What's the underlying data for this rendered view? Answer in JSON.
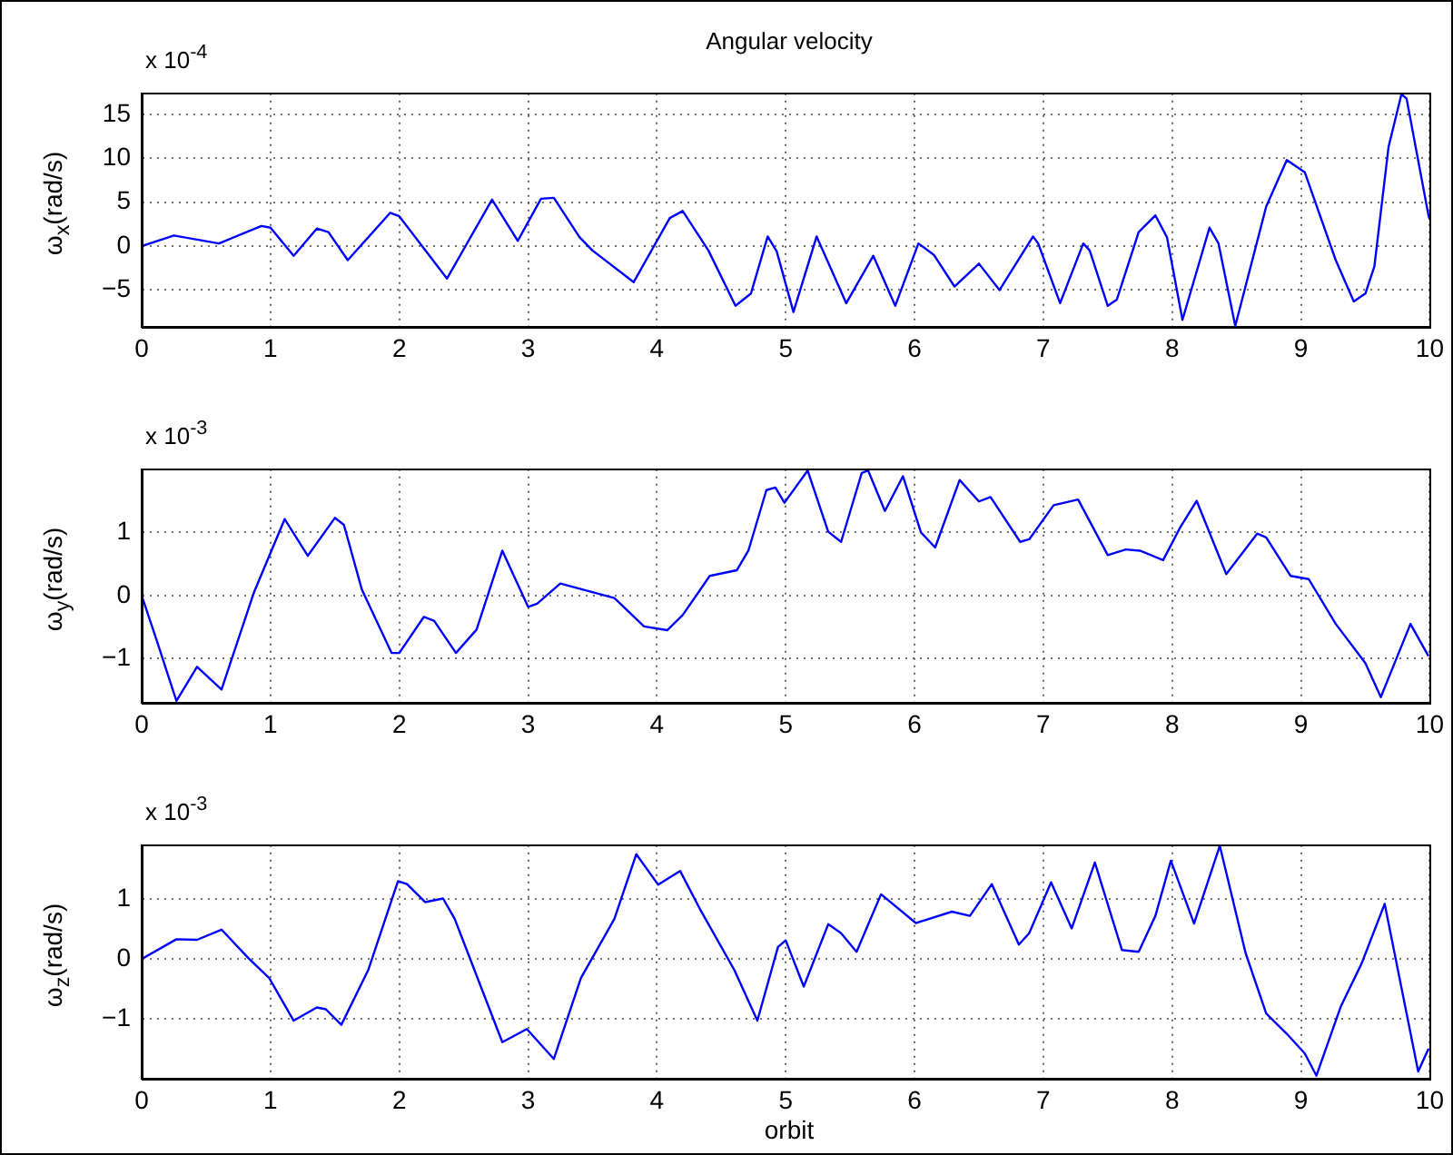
{
  "chart_data": [
    {
      "type": "line",
      "title": "Angular velocity",
      "ylabel": "ω$_{x}$(rad/s)",
      "annotations": [
        "x 10$^{-4}$"
      ],
      "xlim": [
        0,
        10
      ],
      "xticks": [
        0,
        1,
        2,
        3,
        4,
        5,
        6,
        7,
        8,
        9,
        10
      ],
      "ylim": [
        -9.2,
        17.4
      ],
      "yticks": [
        -5,
        0,
        5,
        10,
        15
      ],
      "grid": true,
      "marker": "none",
      "line_style": "solid",
      "x": [
        0,
        0.25,
        0.6,
        0.93,
        1.0,
        1.18,
        1.36,
        1.45,
        1.6,
        1.93,
        2.0,
        2.37,
        2.72,
        2.92,
        3.1,
        3.2,
        3.4,
        3.5,
        3.82,
        4.1,
        4.2,
        4.4,
        4.61,
        4.73,
        4.86,
        4.93,
        5.06,
        5.24,
        5.47,
        5.68,
        5.85,
        6.03,
        6.15,
        6.31,
        6.5,
        6.66,
        6.92,
        6.96,
        7.13,
        7.31,
        7.36,
        7.5,
        7.57,
        7.74,
        7.87,
        7.96,
        8.08,
        8.29,
        8.36,
        8.49,
        8.73,
        8.89,
        9.03,
        9.27,
        9.41,
        9.5,
        9.57,
        9.68,
        9.78,
        9.82,
        9.99,
        10
      ],
      "series": [
        {
          "color": "#0000ff",
          "values": [
            0,
            1.2,
            0.3,
            2.3,
            2.1,
            -1.1,
            2.0,
            1.6,
            -1.6,
            3.8,
            3.4,
            -3.7,
            5.3,
            0.6,
            5.4,
            5.5,
            1.0,
            -0.5,
            -4.1,
            3.2,
            4.0,
            -0.5,
            -6.8,
            -5.4,
            1.1,
            -0.6,
            -7.5,
            1.1,
            -6.5,
            -1.1,
            -6.8,
            0.3,
            -1.0,
            -4.6,
            -2.0,
            -5.0,
            1.1,
            0.3,
            -6.5,
            0.3,
            -0.5,
            -6.8,
            -6.1,
            1.6,
            3.5,
            1.0,
            -8.4,
            2.1,
            0.3,
            -9.1,
            4.5,
            9.8,
            8.4,
            -1.6,
            -6.3,
            -5.4,
            -2.3,
            11.3,
            17.3,
            16.8,
            3.5,
            3.0
          ]
        }
      ]
    },
    {
      "type": "line",
      "ylabel": "ω$_{y}$(rad/s)",
      "annotations": [
        "x 10$^{-3}$"
      ],
      "xlim": [
        0,
        10
      ],
      "xticks": [
        0,
        1,
        2,
        3,
        4,
        5,
        6,
        7,
        8,
        9,
        10
      ],
      "ylim": [
        -1.7,
        2.0
      ],
      "yticks": [
        -1,
        0,
        1
      ],
      "grid": true,
      "marker": "none",
      "line_style": "solid",
      "x": [
        0,
        0.11,
        0.27,
        0.43,
        0.62,
        0.87,
        1.11,
        1.29,
        1.5,
        1.57,
        1.71,
        1.94,
        2.0,
        2.19,
        2.27,
        2.44,
        2.6,
        2.8,
        3.0,
        3.07,
        3.25,
        3.67,
        3.9,
        4.08,
        4.2,
        4.41,
        4.62,
        4.71,
        4.85,
        4.92,
        4.99,
        5.17,
        5.33,
        5.43,
        5.59,
        5.64,
        5.77,
        5.91,
        6.05,
        6.16,
        6.35,
        6.5,
        6.59,
        6.82,
        6.89,
        7.08,
        7.27,
        7.5,
        7.64,
        7.75,
        7.93,
        8.06,
        8.19,
        8.42,
        8.66,
        8.73,
        8.92,
        9.06,
        9.27,
        9.5,
        9.62,
        9.85,
        9.99
      ],
      "series": [
        {
          "color": "#0000ff",
          "values": [
            0,
            -0.67,
            -1.67,
            -1.13,
            -1.49,
            0.04,
            1.21,
            0.63,
            1.23,
            1.12,
            0.09,
            -0.91,
            -0.91,
            -0.34,
            -0.4,
            -0.91,
            -0.54,
            0.71,
            -0.18,
            -0.13,
            0.19,
            -0.04,
            -0.49,
            -0.55,
            -0.31,
            0.31,
            0.4,
            0.71,
            1.67,
            1.71,
            1.47,
            1.98,
            1.01,
            0.85,
            1.94,
            1.98,
            1.34,
            1.89,
            1.0,
            0.76,
            1.83,
            1.49,
            1.56,
            0.85,
            0.89,
            1.43,
            1.52,
            0.64,
            0.73,
            0.71,
            0.56,
            1.07,
            1.5,
            0.34,
            0.98,
            0.92,
            0.31,
            0.26,
            -0.45,
            -1.07,
            -1.61,
            -0.45,
            -0.96
          ]
        }
      ]
    },
    {
      "type": "line",
      "xlabel": "orbit",
      "ylabel": "ω$_{z}$(rad/s)",
      "annotations": [
        "x 10$^{-3}$"
      ],
      "xlim": [
        0,
        10
      ],
      "xticks": [
        0,
        1,
        2,
        3,
        4,
        5,
        6,
        7,
        8,
        9,
        10
      ],
      "ylim": [
        -2.0,
        1.9
      ],
      "yticks": [
        -1,
        0,
        1
      ],
      "grid": true,
      "marker": "none",
      "line_style": "solid",
      "x": [
        0,
        0.27,
        0.43,
        0.62,
        0.83,
        0.99,
        1.18,
        1.36,
        1.43,
        1.55,
        1.76,
        1.99,
        2.06,
        2.2,
        2.34,
        2.43,
        2.8,
        2.99,
        3.2,
        3.41,
        3.67,
        3.84,
        4.01,
        4.18,
        4.34,
        4.6,
        4.78,
        4.94,
        5.0,
        5.14,
        5.33,
        5.43,
        5.55,
        5.74,
        6.01,
        6.29,
        6.43,
        6.6,
        6.81,
        6.89,
        7.06,
        7.22,
        7.4,
        7.61,
        7.74,
        7.87,
        7.99,
        8.17,
        8.37,
        8.57,
        8.73,
        8.89,
        9.03,
        9.12,
        9.31,
        9.47,
        9.65,
        9.91,
        9.99
      ],
      "series": [
        {
          "color": "#0000ff",
          "values": [
            0,
            0.33,
            0.32,
            0.49,
            0.01,
            -0.32,
            -1.03,
            -0.81,
            -0.84,
            -1.1,
            -0.18,
            1.3,
            1.25,
            0.95,
            1.01,
            0.67,
            -1.39,
            -1.17,
            -1.67,
            -0.32,
            0.67,
            1.75,
            1.24,
            1.47,
            0.81,
            -0.18,
            -1.03,
            0.2,
            0.31,
            -0.46,
            0.58,
            0.43,
            0.12,
            1.08,
            0.6,
            0.79,
            0.72,
            1.25,
            0.24,
            0.43,
            1.28,
            0.51,
            1.61,
            0.15,
            0.12,
            0.72,
            1.64,
            0.59,
            1.89,
            0.1,
            -0.91,
            -1.25,
            -1.58,
            -1.95,
            -0.79,
            -0.08,
            0.92,
            -1.88,
            -1.5
          ]
        }
      ]
    }
  ]
}
